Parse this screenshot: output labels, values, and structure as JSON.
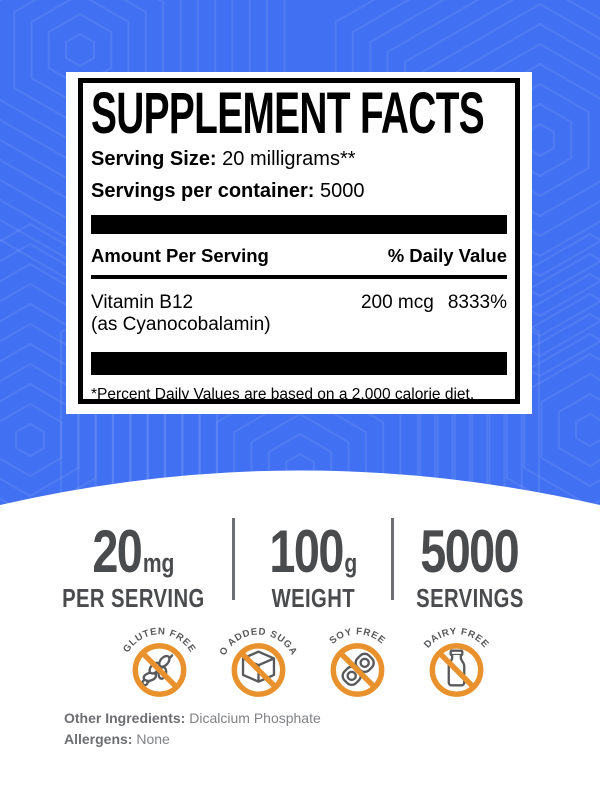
{
  "panel": {
    "title": "SUPPLEMENT FACTS",
    "serving_size_label": "Serving Size:",
    "serving_size_value": " 20 milligrams**",
    "servings_label": "Servings per container:",
    "servings_value": " 5000",
    "amount_header": "Amount Per Serving",
    "dv_header": "% Daily Value",
    "nutrient": {
      "name": "Vitamin B12",
      "form": "(as Cyanocobalamin)",
      "amount": "200 mcg",
      "dv": "8333%"
    },
    "footnote": "*Percent Daily Values are based on a 2,000 calorie diet."
  },
  "stats": [
    {
      "value": "20",
      "unit": "mg",
      "label": "PER SERVING"
    },
    {
      "value": "100",
      "unit": "g",
      "label": "WEIGHT"
    },
    {
      "value": "5000",
      "unit": "",
      "label": "SERVINGS"
    }
  ],
  "badges": [
    {
      "label": "GLUTEN FREE",
      "icon": "wheat-icon"
    },
    {
      "label": "NO ADDED SUGAR",
      "icon": "sugar-cube-icon"
    },
    {
      "label": "SOY FREE",
      "icon": "soybean-icon"
    },
    {
      "label": "DAIRY FREE",
      "icon": "milk-bottle-icon"
    }
  ],
  "footer": {
    "other_ingredients_label": "Other Ingredients:",
    "other_ingredients_value": " Dicalcium Phosphate",
    "allergens_label": "Allergens:",
    "allergens_value": " None"
  },
  "colors": {
    "background_blue": "#4170F2",
    "badge_orange": "#E8912D",
    "icon_gray": "#58595B",
    "stat_gray": "#4A4B4D",
    "panel_black": "#000000"
  }
}
